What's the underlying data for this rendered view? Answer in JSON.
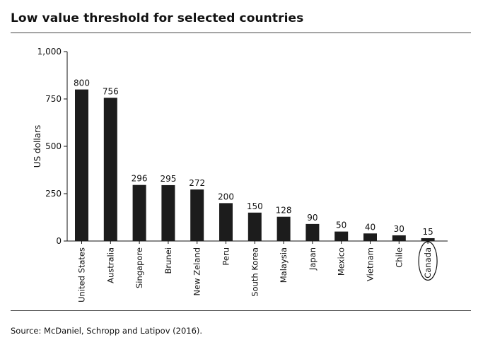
{
  "title": "Low value threshold for selected countries",
  "source": "Source: McDaniel, Schropp and Latipov (2016).",
  "chart_data": {
    "type": "bar",
    "title": "",
    "xlabel": "",
    "ylabel": "US dollars",
    "ylim": [
      0,
      1000
    ],
    "yticks": [
      0,
      250,
      500,
      750,
      1000
    ],
    "ytick_labels": [
      "0",
      "250",
      "500",
      "750",
      "1,000"
    ],
    "categories": [
      "United States",
      "Australia",
      "Singapore",
      "Brunei",
      "New Zeland",
      "Peru",
      "South Korea",
      "Malaysia",
      "Japan",
      "Mexico",
      "Vietnam",
      "Chile",
      "Canada"
    ],
    "values": [
      800,
      756,
      296,
      295,
      272,
      200,
      150,
      128,
      90,
      50,
      40,
      30,
      15
    ],
    "highlighted_category": "Canada",
    "bar_color": "#1c1c1c",
    "grid": false,
    "legend": "none"
  }
}
